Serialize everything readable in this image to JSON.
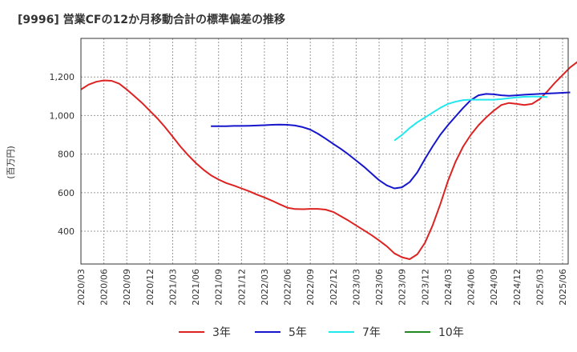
{
  "chart_data": {
    "type": "line",
    "title": "[9996]  営業CFの12か月移動合計の標準偏差の推移",
    "ylabel": "(百万円)",
    "xlabel": "",
    "ylim": [
      230,
      1400
    ],
    "yticks": [
      400,
      600,
      800,
      "1,000",
      "1,200"
    ],
    "ytick_values": [
      400,
      600,
      800,
      1000,
      1200
    ],
    "x_tick_labels": [
      "2020/03",
      "2020/06",
      "2020/09",
      "2020/12",
      "2021/03",
      "2021/06",
      "2021/09",
      "2021/12",
      "2022/03",
      "2022/06",
      "2022/09",
      "2022/12",
      "2023/03",
      "2023/06",
      "2023/09",
      "2023/12",
      "2024/03",
      "2024/06",
      "2024/09",
      "2024/12",
      "2025/03",
      "2025/06"
    ],
    "grid": true,
    "legend_position": "bottom",
    "series": [
      {
        "name": "3年",
        "color": "#dd2222",
        "start": "2020/03",
        "values": [
          1135,
          1160,
          1175,
          1182,
          1180,
          1165,
          1135,
          1100,
          1065,
          1025,
          985,
          940,
          890,
          840,
          795,
          755,
          720,
          690,
          668,
          650,
          637,
          622,
          607,
          590,
          575,
          558,
          540,
          522,
          515,
          514,
          516,
          516,
          512,
          500,
          478,
          455,
          430,
          405,
          380,
          352,
          322,
          285,
          265,
          255,
          280,
          340,
          430,
          540,
          660,
          760,
          840,
          900,
          950,
          990,
          1025,
          1055,
          1065,
          1060,
          1055,
          1060,
          1085,
          1125,
          1170,
          1210,
          1250,
          1280,
          1305,
          1330,
          1350,
          1370
        ]
      },
      {
        "name": "5年",
        "color": "#1515cc",
        "start": "2021/08",
        "values": [
          945,
          945,
          945,
          946,
          946,
          947,
          948,
          950,
          952,
          953,
          952,
          948,
          940,
          927,
          906,
          880,
          853,
          827,
          798,
          767,
          735,
          700,
          665,
          638,
          622,
          628,
          655,
          705,
          775,
          840,
          900,
          950,
          995,
          1040,
          1080,
          1105,
          1112,
          1110,
          1105,
          1102,
          1105,
          1108,
          1110,
          1112,
          1114,
          1116,
          1118,
          1120
        ]
      },
      {
        "name": "7年",
        "color": "#22e8ee",
        "start": "2023/08",
        "values": [
          870,
          900,
          935,
          965,
          990,
          1015,
          1040,
          1060,
          1072,
          1080,
          1082,
          1082,
          1082,
          1082,
          1085,
          1090,
          1094,
          1097,
          1098,
          1098,
          1096
        ]
      },
      {
        "name": "10年",
        "color": "#228822",
        "start": "",
        "values": []
      }
    ]
  }
}
